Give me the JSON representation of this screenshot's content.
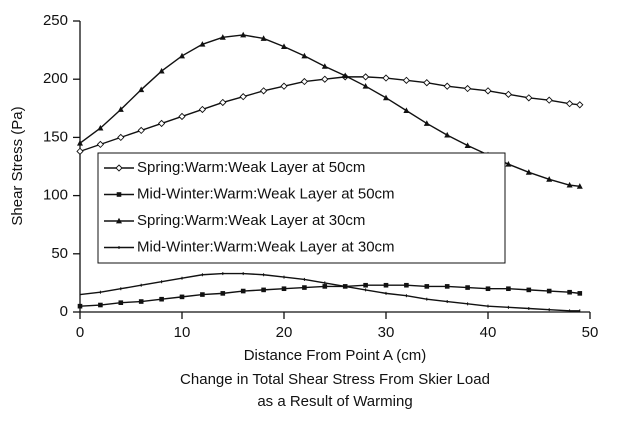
{
  "chart_data": {
    "type": "line",
    "title": [
      "Change in Total Shear Stress From Skier Load",
      "as a Result of Warming"
    ],
    "x_label": "Distance From  Point A (cm)",
    "y_label": "Shear Stress (Pa)",
    "x": [
      0,
      2,
      4,
      6,
      8,
      10,
      12,
      14,
      16,
      18,
      20,
      22,
      24,
      26,
      28,
      30,
      32,
      34,
      36,
      38,
      40,
      42,
      44,
      46,
      48,
      49
    ],
    "series": [
      {
        "name": "Spring:Warm:Weak Layer at 50cm",
        "color": "#111111",
        "marker": "diamond-open",
        "values": [
          138,
          144,
          150,
          156,
          162,
          168,
          174,
          180,
          185,
          190,
          194,
          198,
          200,
          202,
          202,
          201,
          199,
          197,
          194,
          192,
          190,
          187,
          184,
          182,
          179,
          178
        ]
      },
      {
        "name": "Mid-Winter:Warm:Weak Layer at 50cm",
        "color": "#111111",
        "marker": "square",
        "values": [
          5,
          6,
          8,
          9,
          11,
          13,
          15,
          16,
          18,
          19,
          20,
          21,
          22,
          22,
          23,
          23,
          23,
          22,
          22,
          21,
          20,
          20,
          19,
          18,
          17,
          16
        ]
      },
      {
        "name": "Spring:Warm:Weak Layer at 30cm",
        "color": "#111111",
        "marker": "triangle",
        "values": [
          145,
          158,
          174,
          191,
          207,
          220,
          230,
          236,
          238,
          235,
          228,
          220,
          211,
          203,
          194,
          184,
          173,
          162,
          152,
          143,
          135,
          127,
          120,
          114,
          109,
          108
        ]
      },
      {
        "name": "Mid-Winter:Warm:Weak Layer at 30cm",
        "color": "#111111",
        "marker": "none",
        "values": [
          15,
          17,
          20,
          23,
          26,
          29,
          32,
          33,
          33,
          32,
          30,
          28,
          25,
          22,
          19,
          16,
          14,
          11,
          9,
          7,
          5,
          4,
          3,
          2,
          1,
          1
        ]
      }
    ],
    "xlim": [
      0,
      50
    ],
    "xticks": [
      0,
      10,
      20,
      30,
      40,
      50
    ],
    "ylim": [
      0,
      250
    ],
    "yticks": [
      0,
      50,
      100,
      150,
      200,
      250
    ],
    "grid": false
  }
}
